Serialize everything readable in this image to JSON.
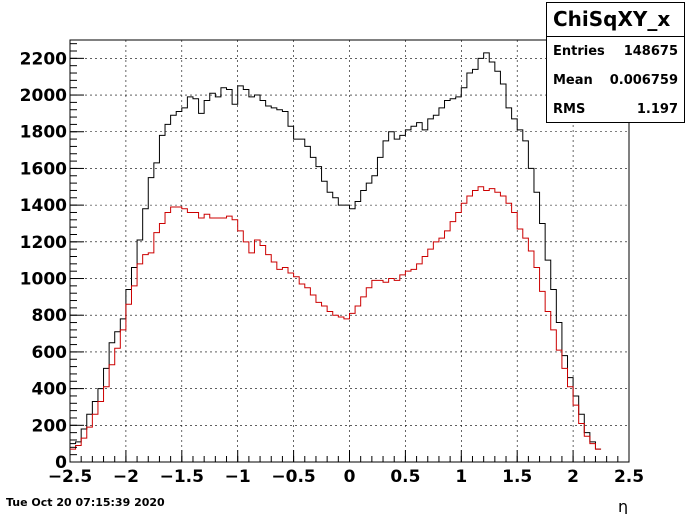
{
  "timestamp": "Tue Oct 20 07:15:39 2020",
  "stats": {
    "title": "ChiSqXY_x",
    "entries_label": "Entries",
    "entries_value": "148675",
    "mean_label": "Mean",
    "mean_value": "0.006759",
    "rms_label": "RMS",
    "rms_value": "1.197"
  },
  "chart_data": {
    "type": "histogram",
    "title": "ChiSqXY_x",
    "xlabel": "η",
    "ylabel": "",
    "xlim": [
      -2.5,
      2.5
    ],
    "ylim": [
      0,
      2300
    ],
    "grid": true,
    "x_ticks": [
      "−2.5",
      "−2",
      "−1.5",
      "−1",
      "−0.5",
      "0",
      "0.5",
      "1",
      "1.5",
      "2",
      "2.5"
    ],
    "y_ticks": [
      "0",
      "200",
      "400",
      "600",
      "800",
      "1000",
      "1200",
      "1400",
      "1600",
      "1800",
      "2000",
      "2200"
    ],
    "bin_edges_start": -2.5,
    "bin_width": 0.05,
    "series": [
      {
        "color": "#000000",
        "values": [
          100,
          110,
          180,
          260,
          330,
          400,
          510,
          650,
          710,
          780,
          940,
          1060,
          1210,
          1380,
          1550,
          1630,
          1780,
          1840,
          1890,
          1910,
          1930,
          1990,
          1980,
          1900,
          1970,
          2010,
          1990,
          2040,
          2030,
          1950,
          2050,
          2030,
          1990,
          2000,
          1970,
          1940,
          1930,
          1920,
          1910,
          1830,
          1760,
          1760,
          1720,
          1660,
          1610,
          1530,
          1470,
          1440,
          1400,
          1400,
          1380,
          1420,
          1480,
          1520,
          1560,
          1660,
          1750,
          1800,
          1760,
          1780,
          1810,
          1830,
          1850,
          1810,
          1870,
          1890,
          1930,
          1970,
          1980,
          1990,
          2040,
          2120,
          2140,
          2200,
          2230,
          2180,
          2130,
          2060,
          1930,
          1870,
          1810,
          1750,
          1600,
          1470,
          1300,
          1100,
          940,
          760,
          580,
          460,
          360,
          260,
          160,
          110,
          70
        ]
      },
      {
        "color": "#cc0000",
        "values": [
          70,
          90,
          130,
          190,
          260,
          330,
          410,
          530,
          620,
          720,
          860,
          960,
          1080,
          1130,
          1140,
          1250,
          1300,
          1360,
          1390,
          1390,
          1380,
          1360,
          1360,
          1330,
          1350,
          1330,
          1330,
          1330,
          1340,
          1320,
          1260,
          1200,
          1140,
          1210,
          1180,
          1130,
          1090,
          1050,
          1060,
          1030,
          1010,
          970,
          950,
          910,
          870,
          850,
          820,
          800,
          790,
          780,
          810,
          850,
          900,
          950,
          990,
          990,
          980,
          1000,
          990,
          1020,
          1040,
          1050,
          1080,
          1120,
          1160,
          1200,
          1220,
          1260,
          1310,
          1360,
          1410,
          1450,
          1480,
          1500,
          1480,
          1490,
          1470,
          1450,
          1410,
          1360,
          1270,
          1220,
          1150,
          1060,
          930,
          820,
          720,
          610,
          510,
          410,
          310,
          210,
          140,
          100,
          70
        ]
      }
    ]
  }
}
